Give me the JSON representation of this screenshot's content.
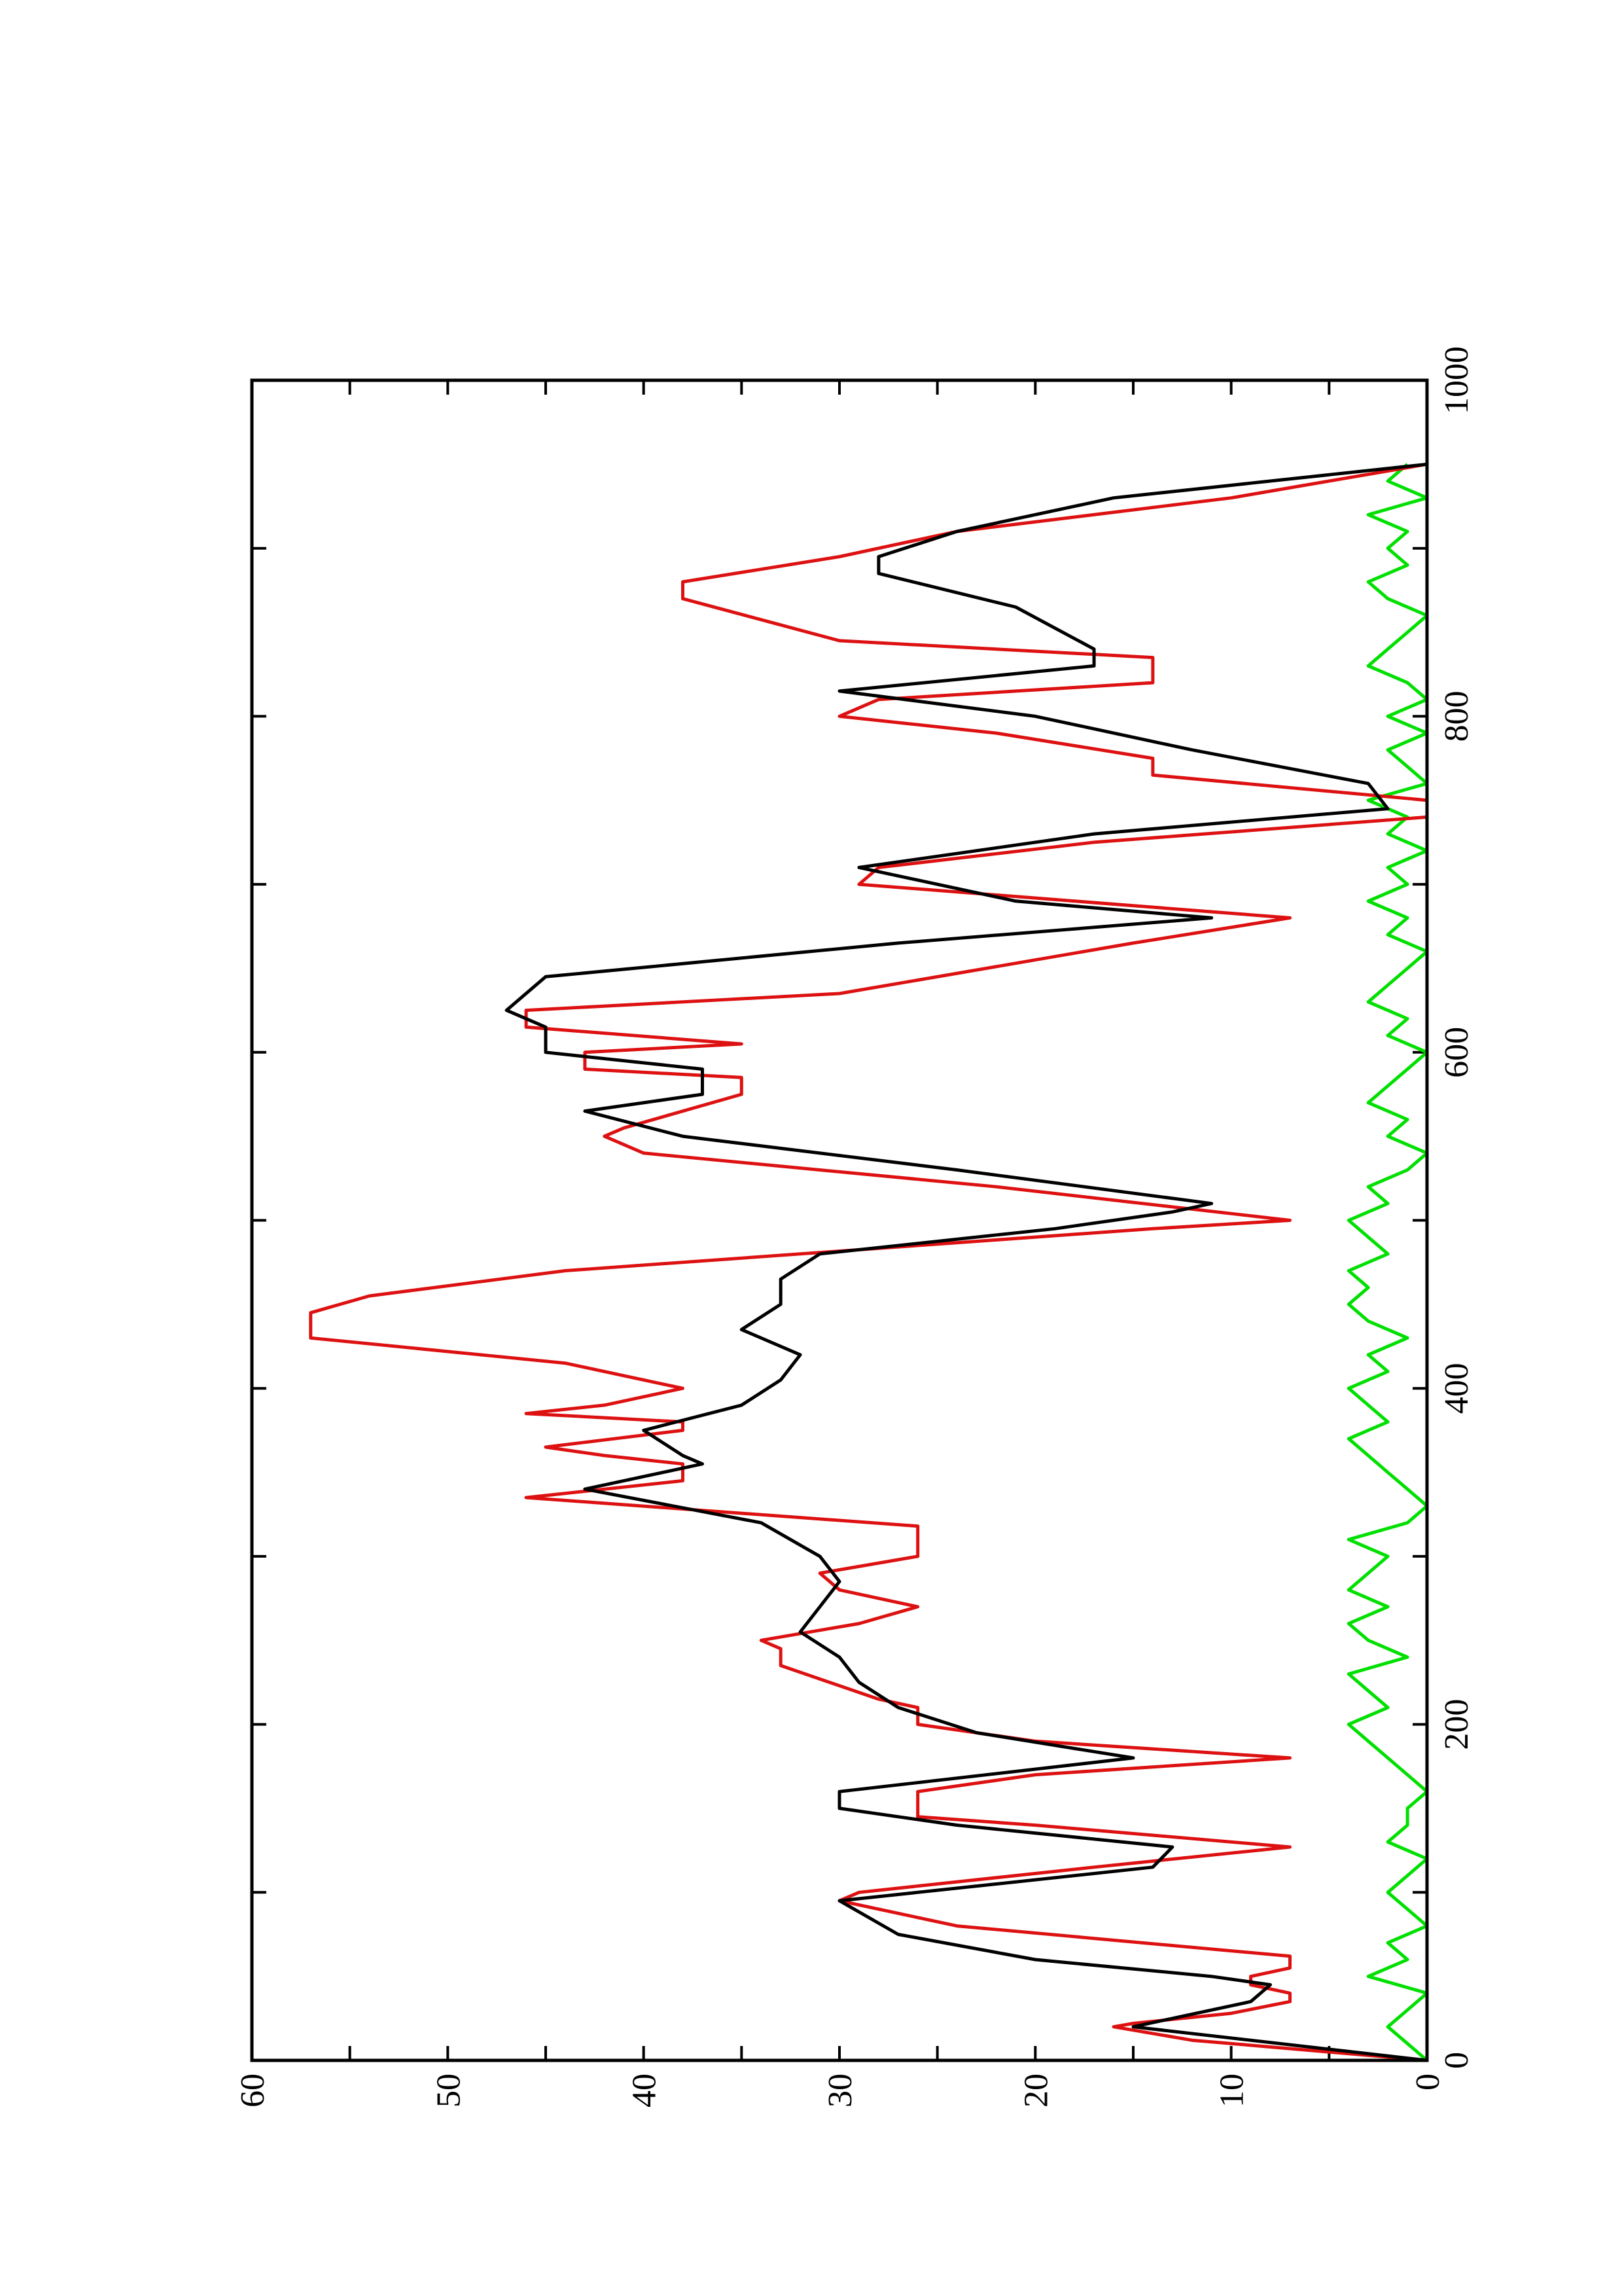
{
  "chart_data": {
    "type": "line",
    "xlim": [
      0,
      1000
    ],
    "ylim": [
      0,
      60
    ],
    "xticks": [
      0,
      200,
      400,
      600,
      800,
      1000
    ],
    "xticks_minor": [
      100,
      300,
      500,
      700,
      900
    ],
    "yticks": [
      0,
      10,
      20,
      30,
      40,
      50,
      60
    ],
    "yticks_minor": [
      5,
      15,
      25,
      35,
      45,
      55
    ],
    "series": [
      {
        "color": "#00e000",
        "x": [
          0,
          10,
          20,
          30,
          40,
          50,
          60,
          70,
          80,
          90,
          100,
          110,
          120,
          130,
          140,
          150,
          160,
          170,
          180,
          190,
          200,
          210,
          220,
          230,
          240,
          250,
          260,
          270,
          280,
          290,
          300,
          310,
          320,
          330,
          340,
          350,
          360,
          370,
          380,
          390,
          400,
          410,
          420,
          430,
          440,
          450,
          460,
          470,
          480,
          490,
          500,
          510,
          520,
          530,
          540,
          550,
          560,
          570,
          580,
          590,
          600,
          610,
          620,
          630,
          640,
          650,
          660,
          670,
          680,
          690,
          700,
          710,
          720,
          730,
          740,
          750,
          760,
          770,
          780,
          790,
          800,
          810,
          820,
          830,
          840,
          850,
          860,
          870,
          880,
          890,
          900,
          910,
          920,
          930,
          940,
          950
        ],
        "values": [
          0,
          1,
          2,
          1,
          0,
          3,
          1,
          2,
          0,
          1,
          2,
          1,
          0,
          2,
          1,
          1,
          0,
          1,
          2,
          3,
          4,
          2,
          3,
          4,
          1,
          3,
          4,
          2,
          4,
          3,
          2,
          4,
          1,
          0,
          1,
          2,
          3,
          4,
          2,
          3,
          4,
          2,
          3,
          1,
          3,
          4,
          3,
          4,
          2,
          3,
          4,
          2,
          3,
          1,
          0,
          2,
          1,
          3,
          2,
          1,
          0,
          2,
          1,
          3,
          2,
          1,
          0,
          2,
          1,
          3,
          1,
          2,
          0,
          2,
          1,
          3,
          0,
          1,
          2,
          0,
          2,
          0,
          1,
          3,
          2,
          1,
          0,
          2,
          3,
          1,
          2,
          1,
          3,
          0,
          2,
          1
        ]
      },
      {
        "color": "#dd1111",
        "x": [
          0,
          12,
          20,
          22,
          28,
          35,
          40,
          45,
          50,
          55,
          62,
          80,
          95,
          100,
          115,
          127,
          140,
          145,
          160,
          170,
          180,
          190,
          200,
          210,
          215,
          235,
          245,
          250,
          260,
          270,
          280,
          290,
          300,
          318,
          335,
          345,
          355,
          360,
          365,
          375,
          380,
          385,
          390,
          400,
          415,
          430,
          445,
          455,
          470,
          495,
          500,
          520,
          540,
          550,
          555,
          575,
          585,
          590,
          600,
          605,
          615,
          625,
          635,
          665,
          680,
          700,
          710,
          725,
          740,
          750,
          765,
          775,
          790,
          800,
          810,
          820,
          835,
          845,
          870,
          880,
          895,
          910,
          930,
          950
        ],
        "values": [
          0,
          12,
          16,
          15,
          10,
          7,
          7,
          9,
          9,
          7,
          7,
          24,
          30,
          29,
          17,
          7,
          20,
          26,
          26,
          20,
          7,
          20,
          26,
          26,
          28,
          33,
          33,
          34,
          29,
          26,
          30,
          31,
          26,
          26,
          46,
          38,
          38,
          42,
          45,
          38,
          38,
          46,
          42,
          38,
          44,
          57,
          57,
          54,
          44,
          14,
          7,
          22,
          40,
          42,
          41,
          35,
          35,
          43,
          43,
          35,
          46,
          46,
          30,
          15,
          7,
          29,
          28,
          17,
          0,
          0,
          14,
          14,
          22,
          30,
          28,
          14,
          14,
          30,
          38,
          38,
          30,
          24,
          10,
          0
        ]
      },
      {
        "color": "#000000",
        "x": [
          0,
          20,
          35,
          45,
          50,
          60,
          75,
          95,
          105,
          115,
          127,
          140,
          150,
          160,
          180,
          195,
          210,
          225,
          240,
          255,
          270,
          285,
          300,
          320,
          340,
          355,
          360,
          375,
          390,
          405,
          420,
          435,
          450,
          465,
          480,
          495,
          505,
          510,
          530,
          550,
          565,
          575,
          590,
          600,
          615,
          625,
          645,
          665,
          680,
          690,
          710,
          730,
          745,
          760,
          780,
          800,
          815,
          830,
          840,
          865,
          885,
          895,
          910,
          930,
          950
        ],
        "values": [
          0,
          15,
          9,
          8,
          11,
          20,
          27,
          30,
          22,
          14,
          13,
          24,
          30,
          30,
          15,
          23,
          27,
          29,
          30,
          32,
          31,
          30,
          31,
          34,
          43,
          37,
          38,
          40,
          35,
          33,
          32,
          35,
          33,
          33,
          31,
          19,
          13,
          11,
          24,
          38,
          43,
          37,
          37,
          45,
          45,
          47,
          45,
          27,
          11,
          21,
          29,
          17,
          2,
          3,
          12,
          20,
          30,
          17,
          17,
          21,
          28,
          28,
          24,
          16,
          0
        ]
      }
    ]
  }
}
